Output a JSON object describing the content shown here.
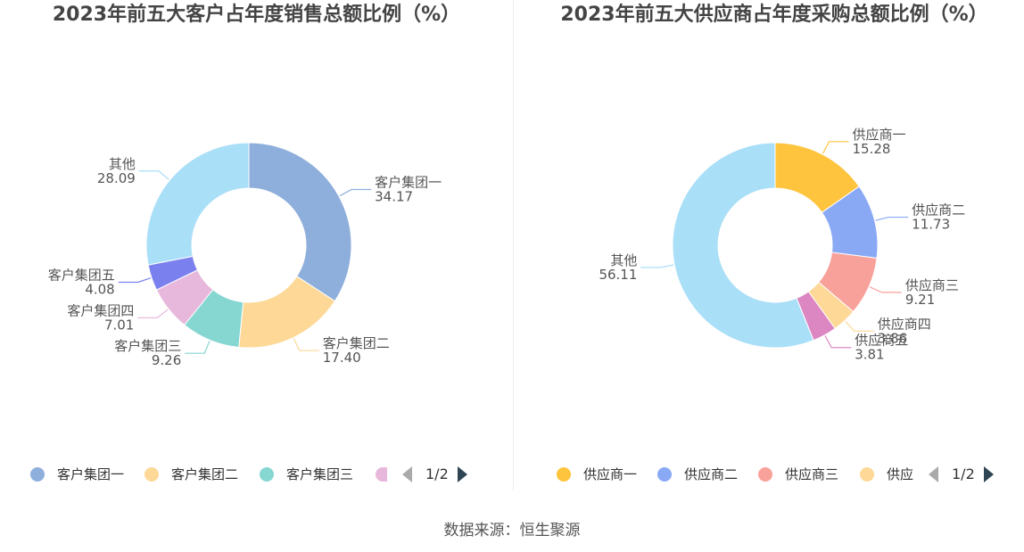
{
  "charts": [
    {
      "title": "2023年前五大客户占年度销售总额比例（%）",
      "pager": "1/2",
      "legend": [
        {
          "label": "客户集团一",
          "color": "#8eaedb"
        },
        {
          "label": "客户集团二",
          "color": "#fdd896"
        },
        {
          "label": "客户集团三",
          "color": "#86d6d2"
        },
        {
          "label": "",
          "color": "#e7b8dc"
        }
      ]
    },
    {
      "title": "2023年前五大供应商占年度采购总额比例（%）",
      "pager": "1/2",
      "legend": [
        {
          "label": "供应商一",
          "color": "#ffc43d"
        },
        {
          "label": "供应商二",
          "color": "#8aa9f5"
        },
        {
          "label": "供应商三",
          "color": "#f8a19b"
        },
        {
          "label": "供应",
          "color": "#fdd896"
        }
      ]
    }
  ],
  "source": "数据来源：恒生聚源",
  "chart_data": [
    {
      "type": "pie",
      "title": "2023年前五大客户占年度销售总额比例（%）",
      "donut": true,
      "legend_position": "bottom",
      "slices": [
        {
          "name": "客户集团一",
          "value": 34.17,
          "color": "#8eaedb"
        },
        {
          "name": "客户集团二",
          "value": 17.4,
          "color": "#fdd896"
        },
        {
          "name": "客户集团三",
          "value": 9.26,
          "color": "#86d6d2"
        },
        {
          "name": "客户集团四",
          "value": 7.01,
          "color": "#e7b8dc"
        },
        {
          "name": "客户集团五",
          "value": 4.08,
          "color": "#7b80ef"
        },
        {
          "name": "其他",
          "value": 28.09,
          "color": "#aadff8"
        }
      ]
    },
    {
      "type": "pie",
      "title": "2023年前五大供应商占年度采购总额比例（%）",
      "donut": true,
      "legend_position": "bottom",
      "slices": [
        {
          "name": "供应商一",
          "value": 15.28,
          "color": "#ffc43d"
        },
        {
          "name": "供应商二",
          "value": 11.73,
          "color": "#8aa9f5"
        },
        {
          "name": "供应商三",
          "value": 9.21,
          "color": "#f8a19b"
        },
        {
          "name": "供应商四",
          "value": 3.86,
          "color": "#fdd896"
        },
        {
          "name": "供应商五",
          "value": 3.81,
          "color": "#dc86c2"
        },
        {
          "name": "其他",
          "value": 56.11,
          "color": "#aadff8"
        }
      ]
    }
  ]
}
